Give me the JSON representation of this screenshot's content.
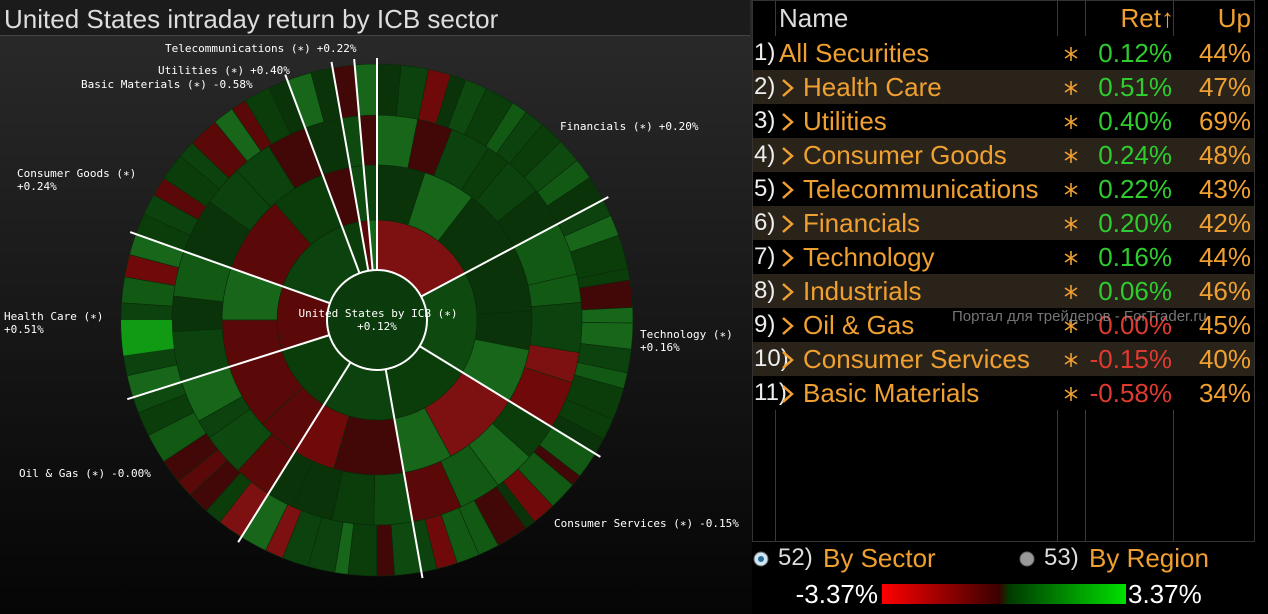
{
  "header": {
    "title": "United States intraday return by ICB sector"
  },
  "sunburst": {
    "center": {
      "label": "United States by ICB (∗)",
      "value": "+0.12%"
    },
    "sectors": [
      {
        "label": "Telecommunications (∗)",
        "value": "+0.22%"
      },
      {
        "label": "Utilities (∗)",
        "value": "+0.40%"
      },
      {
        "label": "Basic Materials (∗)",
        "value": "-0.58%"
      },
      {
        "label": "Financials (∗)",
        "value": "+0.20%"
      },
      {
        "label": "Consumer Goods (∗)",
        "value": "+0.24%"
      },
      {
        "label": "Health Care (∗)",
        "value": "+0.51%"
      },
      {
        "label": "Technology (∗)",
        "value": "+0.16%"
      },
      {
        "label": "Oil & Gas (∗)",
        "value": "-0.00%"
      },
      {
        "label": "Consumer Services (∗)",
        "value": "-0.15%"
      }
    ]
  },
  "table": {
    "headers": {
      "name": "Name",
      "ret": "Ret↑",
      "up": "Up"
    },
    "rows": [
      {
        "num": "1)",
        "name": "All Securities",
        "ret": "0.12%",
        "up": "44%",
        "ret_color": "#2ecc2e",
        "expandable": false
      },
      {
        "num": "2)",
        "name": "Health Care",
        "ret": "0.51%",
        "up": "47%",
        "ret_color": "#2ecc2e",
        "expandable": true
      },
      {
        "num": "3)",
        "name": "Utilities",
        "ret": "0.40%",
        "up": "69%",
        "ret_color": "#2ecc2e",
        "expandable": true
      },
      {
        "num": "4)",
        "name": "Consumer Goods",
        "ret": "0.24%",
        "up": "48%",
        "ret_color": "#2ecc2e",
        "expandable": true
      },
      {
        "num": "5)",
        "name": "Telecommunications",
        "ret": "0.22%",
        "up": "43%",
        "ret_color": "#2ecc2e",
        "expandable": true
      },
      {
        "num": "6)",
        "name": "Financials",
        "ret": "0.20%",
        "up": "42%",
        "ret_color": "#2ecc2e",
        "expandable": true
      },
      {
        "num": "7)",
        "name": "Technology",
        "ret": "0.16%",
        "up": "44%",
        "ret_color": "#2ecc2e",
        "expandable": true
      },
      {
        "num": "8)",
        "name": "Industrials",
        "ret": "0.06%",
        "up": "46%",
        "ret_color": "#2ecc2e",
        "expandable": true
      },
      {
        "num": "9)",
        "name": "Oil & Gas",
        "ret": "0.00%",
        "up": "45%",
        "ret_color": "#e03a30",
        "expandable": true
      },
      {
        "num": "10)",
        "name": "Consumer Services",
        "ret": "-0.15%",
        "up": "40%",
        "ret_color": "#e03a30",
        "expandable": true
      },
      {
        "num": "11)",
        "name": "Basic Materials",
        "ret": "-0.58%",
        "up": "34%",
        "ret_color": "#e03a30",
        "expandable": true
      }
    ]
  },
  "watermark": "Портал для трейдеров - ForTrader.ru",
  "controls": {
    "options": [
      {
        "num": "52)",
        "label": "By Sector",
        "selected": true
      },
      {
        "num": "53)",
        "label": "By Region",
        "selected": false
      }
    ]
  },
  "legend": {
    "min": "-3.37%",
    "max": "3.37%"
  }
}
